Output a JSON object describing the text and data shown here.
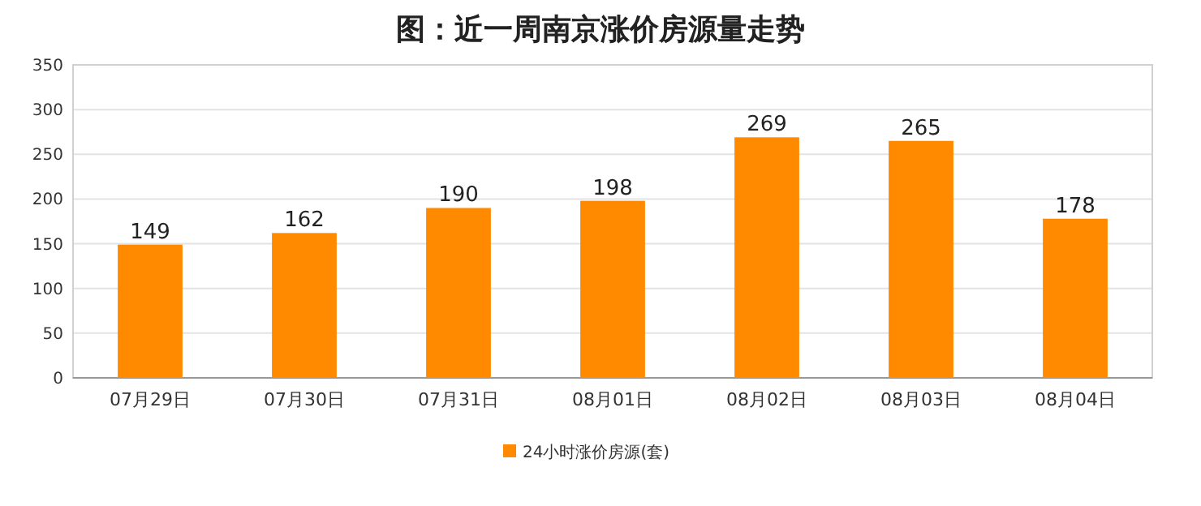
{
  "chart_data": {
    "type": "bar",
    "title": "图：近一周南京涨价房源量走势",
    "categories": [
      "07月29日",
      "07月30日",
      "07月31日",
      "08月01日",
      "08月02日",
      "08月03日",
      "08月04日"
    ],
    "series": [
      {
        "name": "24小时涨价房源(套)",
        "color": "#ff8a00",
        "values": [
          149,
          162,
          190,
          198,
          269,
          265,
          178
        ]
      }
    ],
    "ylim": [
      0,
      350
    ],
    "yticks": [
      0,
      50,
      100,
      150,
      200,
      250,
      300,
      350
    ],
    "grid": "y",
    "legend": "bottom",
    "data_labels": true
  }
}
